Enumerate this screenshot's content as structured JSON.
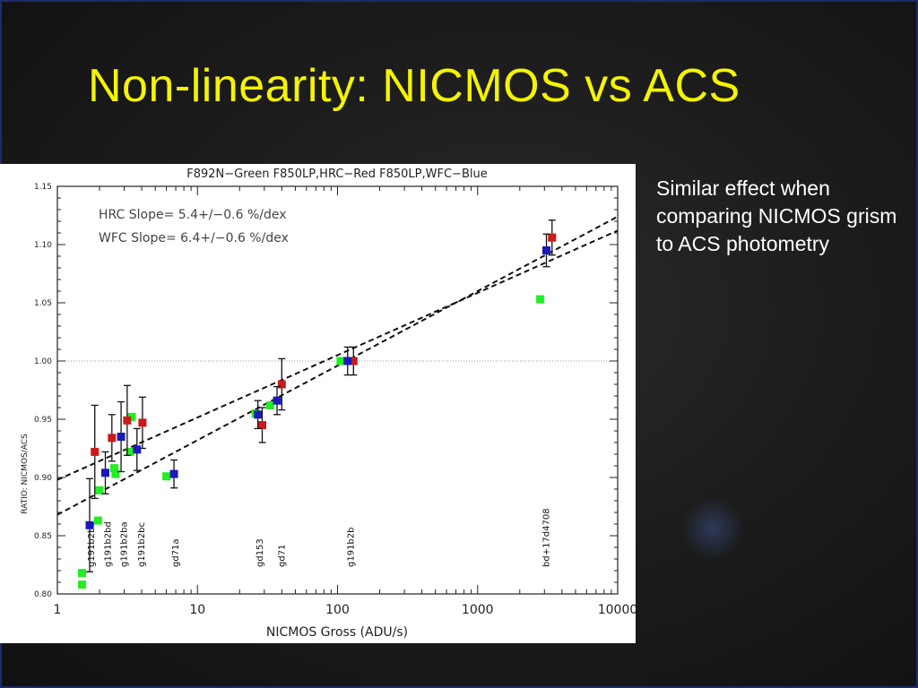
{
  "slide": {
    "title": "Non-linearity: NICMOS vs ACS",
    "side_text": "Similar effect when comparing NICMOS grism to ACS photometry"
  },
  "colors": {
    "background": "#1d1d1d",
    "title": "#f4f400",
    "green": "#22ee22",
    "red": "#cc1a1a",
    "blue": "#1a1ab8"
  },
  "chart_data": {
    "type": "scatter",
    "title": "F892N−Green   F850LP,HRC−Red   F850LP,WFC−Blue",
    "xlabel": "NICMOS Gross (ADU/s)",
    "ylabel": "RATIO: NICMOS/ACS",
    "x_scale": "log",
    "xlim": [
      1,
      10000
    ],
    "ylim": [
      0.8,
      1.15
    ],
    "x_ticks": [
      1,
      10,
      100,
      1000,
      10000
    ],
    "x_tick_labels": [
      "1",
      "10",
      "100",
      "1000",
      "10000"
    ],
    "y_ticks": [
      0.8,
      0.85,
      0.9,
      0.95,
      1.0,
      1.05,
      1.1,
      1.15
    ],
    "y_tick_labels": [
      "0.80",
      "0.85",
      "0.90",
      "0.95",
      "1.00",
      "1.05",
      "1.10",
      "1.15"
    ],
    "reference_line_y": 1.0,
    "annotations": [
      "HRC Slope= 5.4+/−0.6 %/dex",
      "WFC Slope= 6.4+/−0.6 %/dex"
    ],
    "star_labels": [
      {
        "text": "g191b2bb",
        "x": 1.75
      },
      {
        "text": "g191b2bd",
        "x": 2.3
      },
      {
        "text": "g191b2ba",
        "x": 3.0
      },
      {
        "text": "g191b2bc",
        "x": 4.0
      },
      {
        "text": "gd71a",
        "x": 7.0
      },
      {
        "text": "gd153",
        "x": 28
      },
      {
        "text": "gd71",
        "x": 40
      },
      {
        "text": "g191b2b",
        "x": 125
      },
      {
        "text": "bd+17d4708",
        "x": 3100
      }
    ],
    "fit_lines": [
      {
        "name": "HRC",
        "x": [
          1,
          10000
        ],
        "y": [
          0.898,
          1.112
        ]
      },
      {
        "name": "WFC",
        "x": [
          1,
          10000
        ],
        "y": [
          0.868,
          1.124
        ]
      }
    ],
    "series": [
      {
        "name": "F892N",
        "color": "green",
        "x": [
          1.5,
          1.5,
          1.95,
          2.0,
          2.55,
          2.6,
          3.3,
          3.4,
          6.0,
          26,
          33,
          105,
          2800
        ],
        "y": [
          0.818,
          0.808,
          0.863,
          0.889,
          0.908,
          0.903,
          0.922,
          0.952,
          0.901,
          0.955,
          0.962,
          1.0,
          1.053
        ],
        "err": [
          0,
          0,
          0,
          0,
          0,
          0,
          0,
          0,
          0,
          0,
          0,
          0,
          0
        ]
      },
      {
        "name": "F850LP,HRC",
        "color": "red",
        "x": [
          1.85,
          2.45,
          3.15,
          4.05,
          29,
          40,
          130,
          3400
        ],
        "y": [
          0.922,
          0.934,
          0.949,
          0.947,
          0.945,
          0.98,
          1.0,
          1.106
        ],
        "err": [
          0.04,
          0.02,
          0.03,
          0.022,
          0.015,
          0.022,
          0.012,
          0.015
        ]
      },
      {
        "name": "F850LP,WFC",
        "color": "blue",
        "x": [
          1.7,
          2.2,
          2.85,
          3.7,
          6.8,
          27,
          37,
          118,
          3100
        ],
        "y": [
          0.859,
          0.904,
          0.935,
          0.924,
          0.903,
          0.954,
          0.966,
          1.0,
          1.095
        ],
        "err": [
          0.04,
          0.018,
          0.03,
          0.018,
          0.012,
          0.012,
          0.012,
          0.012,
          0.014
        ]
      }
    ]
  }
}
